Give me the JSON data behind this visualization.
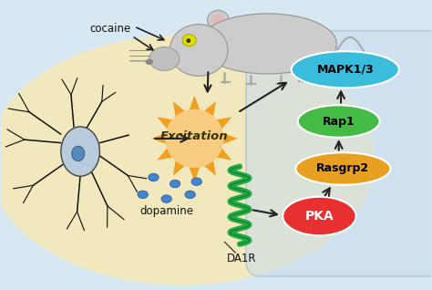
{
  "background_color": "#d8e8f2",
  "cell_bg_color": "#f5e8b8",
  "signaling_box_color": "#c8dced",
  "signaling_box_edge": "#9ab8cc",
  "mapk_color": "#3abcdc",
  "rap1_color": "#44bb44",
  "rasgrp2_color": "#e8a020",
  "pka_color": "#e83030",
  "excitation_outer": "#f0a020",
  "excitation_inner": "#f8cc80",
  "dopamine_color": "#4488cc",
  "helix_color": "#22aa44",
  "arrow_color": "#222222",
  "neuron_body_color": "#b8ccdd",
  "neuron_nucleus_color": "#5588bb",
  "mouse_body_color": "#cccccc",
  "mouse_body_edge": "#999999",
  "mouse_ear_color": "#ddbbbb",
  "mouse_eye_color": "#dddd00",
  "text_cocaine": "cocaine",
  "text_excitation": "Excitation",
  "text_dopamine": "dopamine",
  "text_da1r": "DA1R",
  "text_mapk": "MAPK1/3",
  "text_rap1": "Rap1",
  "text_rasgrp2": "Rasgrp2",
  "text_pka": "PKA"
}
